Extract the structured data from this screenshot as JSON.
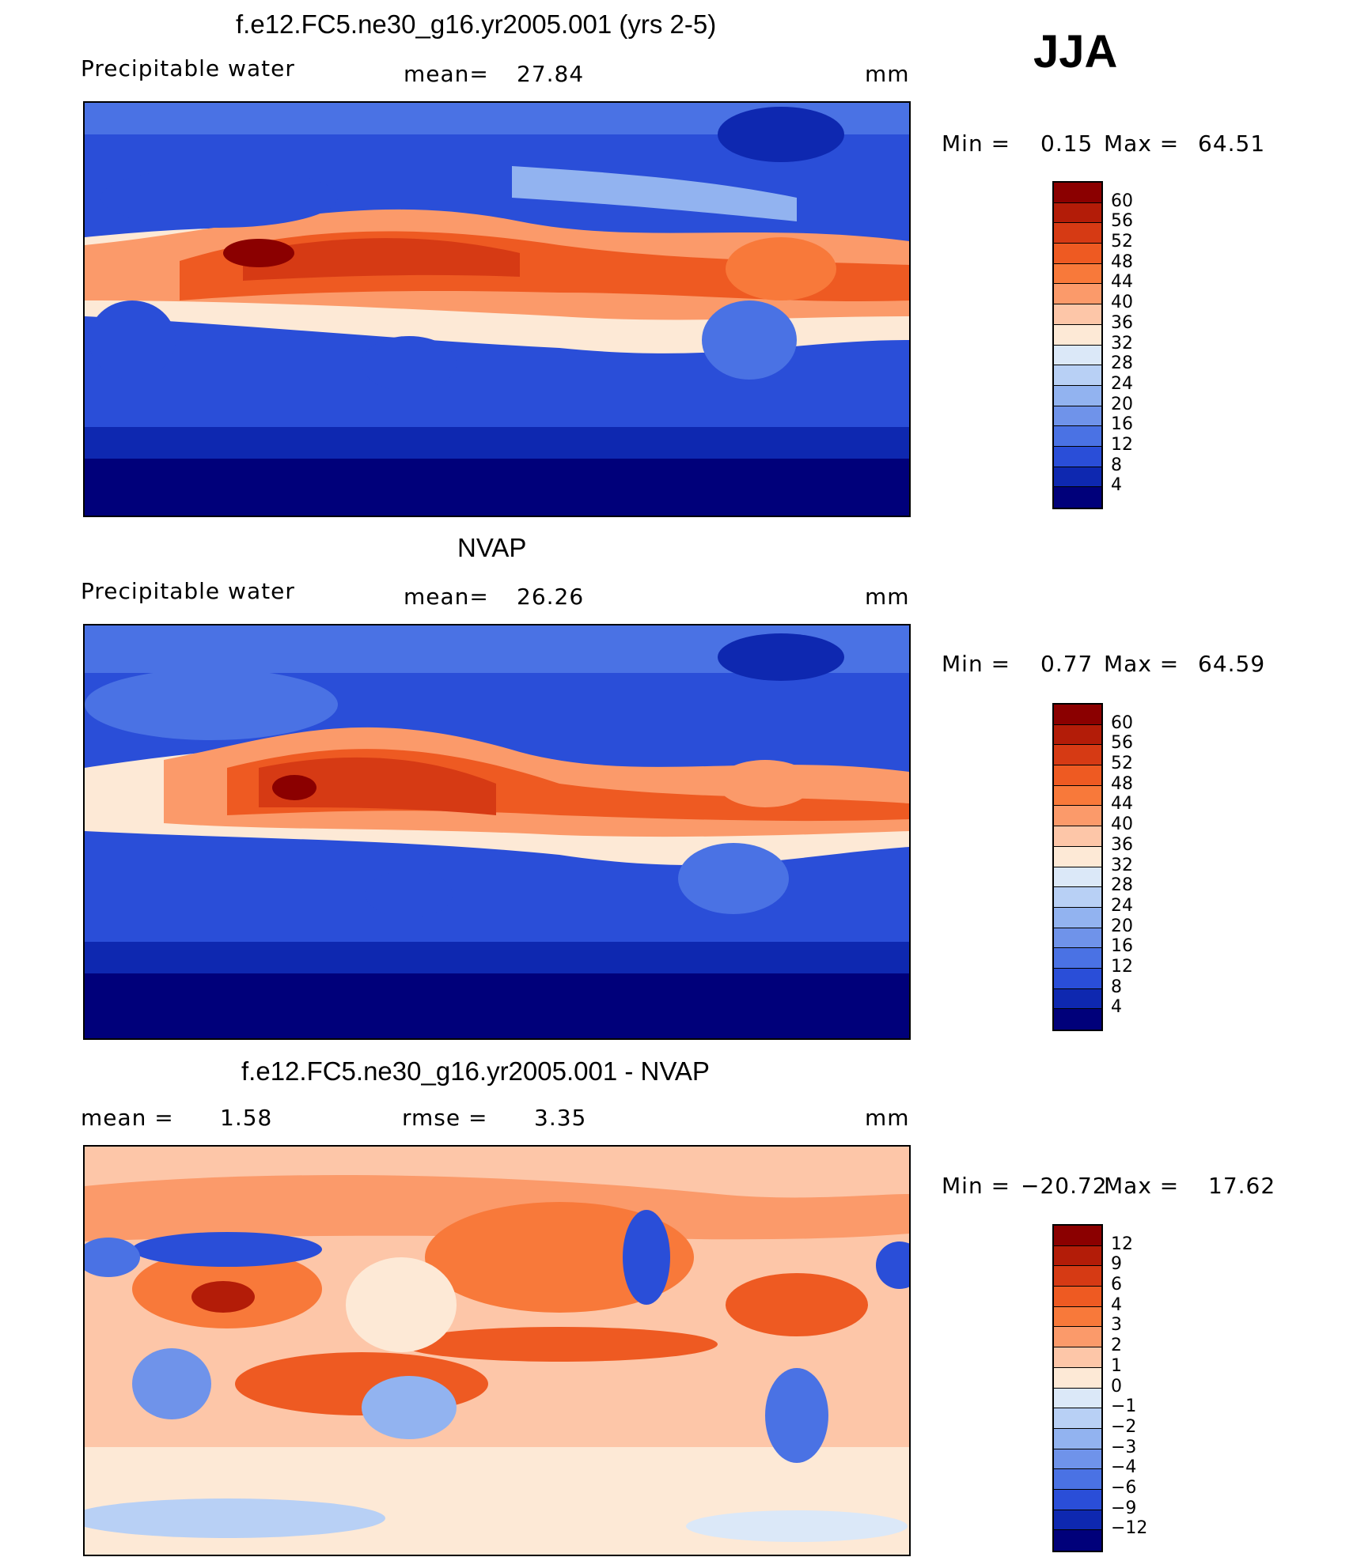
{
  "season": "JJA",
  "chart_data": [
    {
      "type": "heatmap",
      "title": "f.e12.FC5.ne30_g16.yr2005.001 (yrs 2-5)",
      "variable": "Precipitable water",
      "mean_label": "mean=",
      "mean": "27.84",
      "units": "mm",
      "min_label": "Min =",
      "min": "0.15",
      "max_label": "Max =",
      "max": "64.51",
      "levels": [
        "60",
        "56",
        "52",
        "48",
        "44",
        "40",
        "36",
        "32",
        "28",
        "24",
        "20",
        "16",
        "12",
        "8",
        "4"
      ],
      "colors": [
        "#8b0000",
        "#b31c08",
        "#d63a14",
        "#ee5a22",
        "#f8793a",
        "#fb9a6a",
        "#fdc6a8",
        "#fde9d6",
        "#dbe8f8",
        "#b8d0f5",
        "#92b3f0",
        "#6f93ea",
        "#4a72e4",
        "#2a4ed8",
        "#0e28b0",
        "#00007a"
      ]
    },
    {
      "type": "heatmap",
      "title": "NVAP",
      "variable": "Precipitable water",
      "mean_label": "mean=",
      "mean": "26.26",
      "units": "mm",
      "min_label": "Min =",
      "min": "0.77",
      "max_label": "Max =",
      "max": "64.59",
      "levels": [
        "60",
        "56",
        "52",
        "48",
        "44",
        "40",
        "36",
        "32",
        "28",
        "24",
        "20",
        "16",
        "12",
        "8",
        "4"
      ],
      "colors": [
        "#8b0000",
        "#b31c08",
        "#d63a14",
        "#ee5a22",
        "#f8793a",
        "#fb9a6a",
        "#fdc6a8",
        "#fde9d6",
        "#dbe8f8",
        "#b8d0f5",
        "#92b3f0",
        "#6f93ea",
        "#4a72e4",
        "#2a4ed8",
        "#0e28b0",
        "#00007a"
      ]
    },
    {
      "type": "heatmap",
      "title": "f.e12.FC5.ne30_g16.yr2005.001 - NVAP",
      "mean_label": "mean =",
      "mean": "1.58",
      "rmse_label": "rmse =",
      "rmse": "3.35",
      "units": "mm",
      "min_label": "Min =",
      "min": "−20.72",
      "max_label": "Max =",
      "max": "17.62",
      "levels": [
        "12",
        "9",
        "6",
        "4",
        "3",
        "2",
        "1",
        "0",
        "−1",
        "−2",
        "−3",
        "−4",
        "−6",
        "−9",
        "−12"
      ],
      "colors": [
        "#8b0000",
        "#b31c08",
        "#d63a14",
        "#ee5a22",
        "#f8793a",
        "#fb9a6a",
        "#fdc6a8",
        "#fde9d6",
        "#dbe8f8",
        "#b8d0f5",
        "#92b3f0",
        "#6f93ea",
        "#4a72e4",
        "#2a4ed8",
        "#0e28b0",
        "#00007a"
      ]
    }
  ]
}
